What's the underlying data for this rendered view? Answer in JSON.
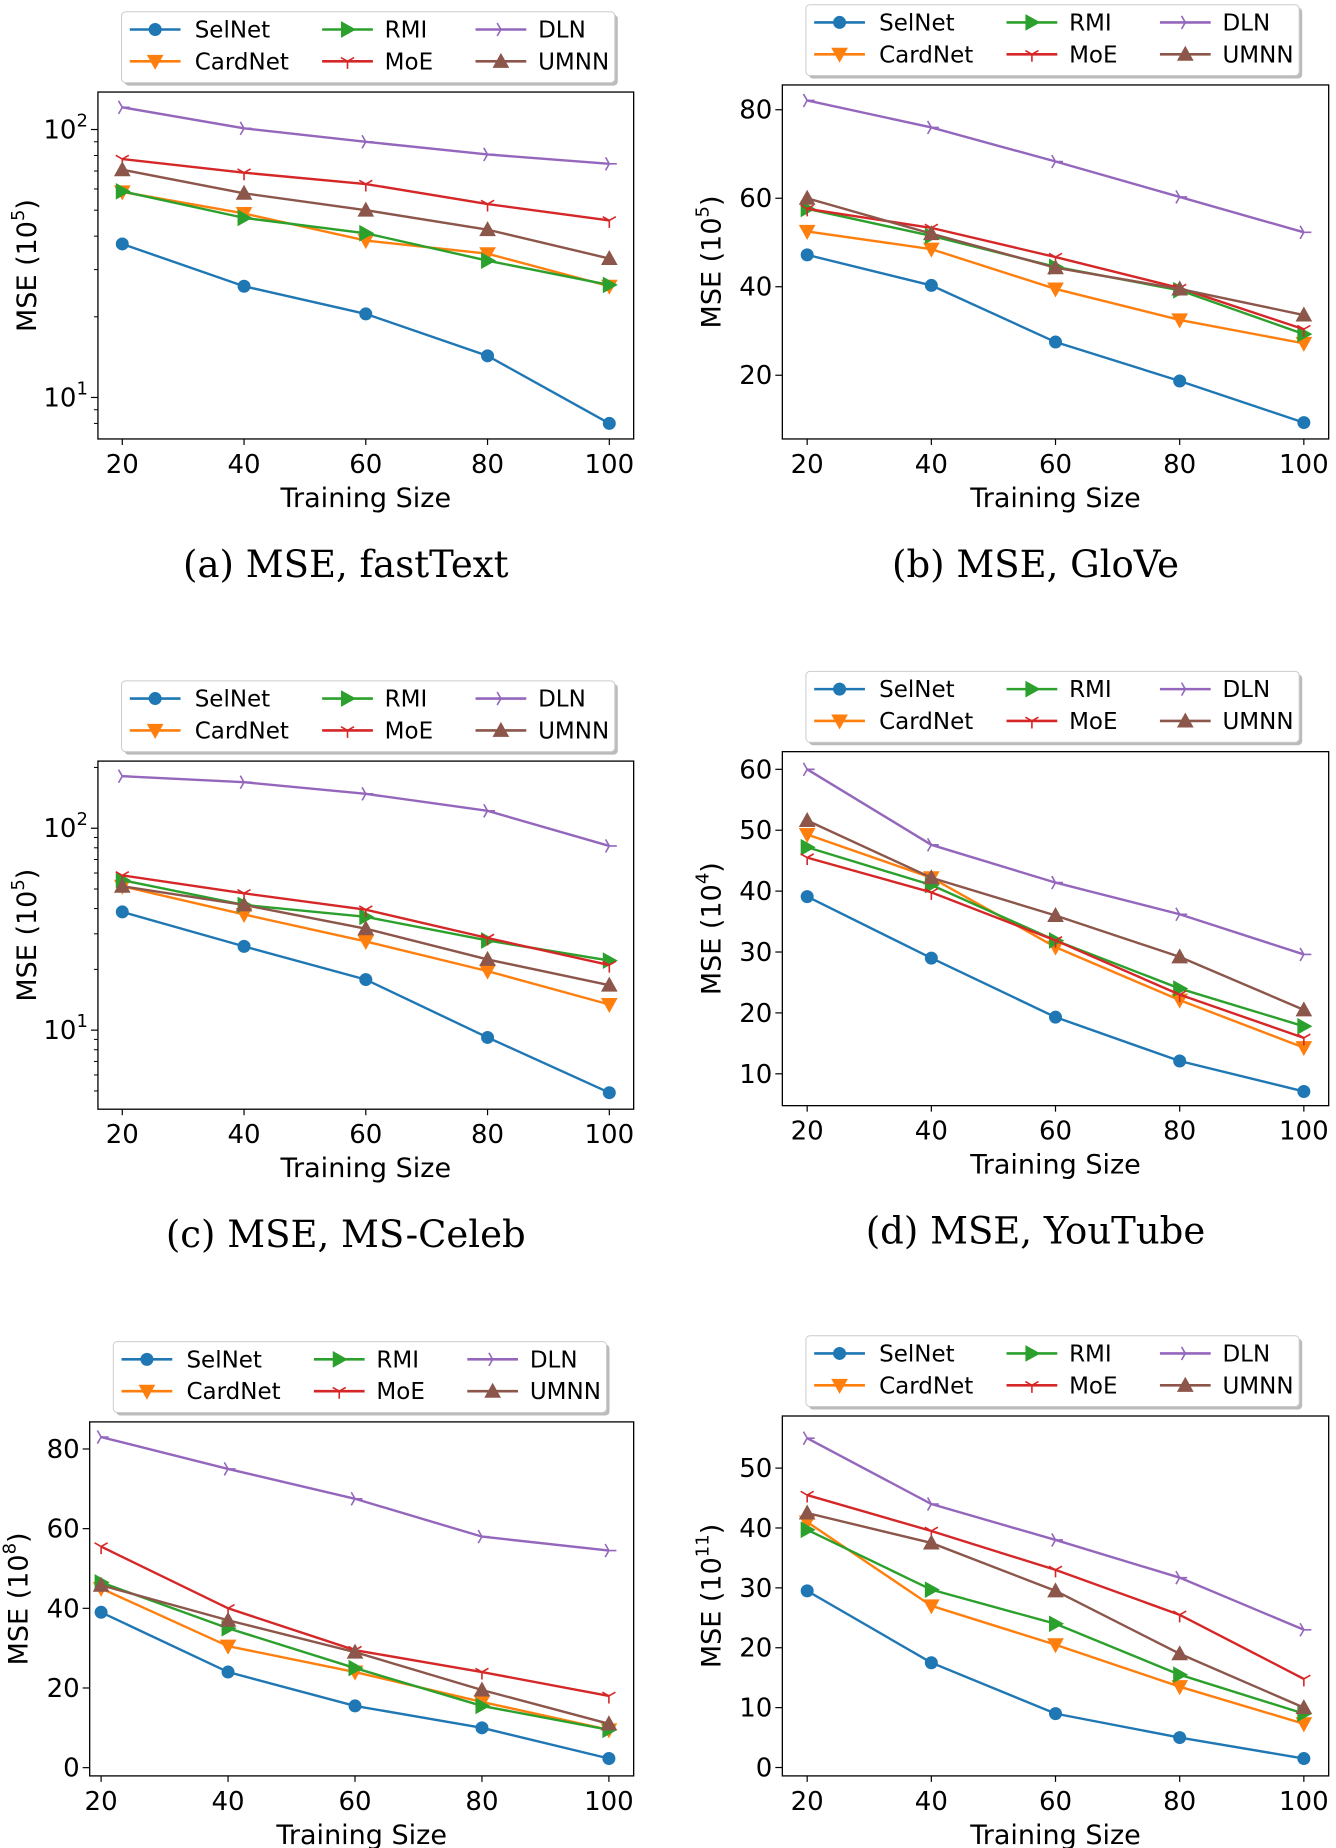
{
  "series_styles": [
    {
      "name": "SelNet",
      "color": "#1f77b4",
      "marker": "circle"
    },
    {
      "name": "CardNet",
      "color": "#ff7f0e",
      "marker": "triangle-down"
    },
    {
      "name": "RMI",
      "color": "#2ca02c",
      "marker": "triangle-right"
    },
    {
      "name": "MoE",
      "color": "#d62728",
      "marker": "tri-down"
    },
    {
      "name": "DLN",
      "color": "#9467bd",
      "marker": "tri-right"
    },
    {
      "name": "UMNN",
      "color": "#8c564b",
      "marker": "triangle-up"
    }
  ],
  "chart_data": [
    {
      "type": "line",
      "caption": "(a)  MSE, fastText",
      "xlabel": "Training Size",
      "ylabel": "MSE (10",
      "ylabel_exp": "5",
      "ylabel_close": ")",
      "yscale": "log",
      "ylim": [
        7,
        138
      ],
      "xlim": [
        16,
        104
      ],
      "x": [
        20,
        40,
        60,
        80,
        100
      ],
      "xticks": [
        "20",
        "40",
        "60",
        "80",
        "100"
      ],
      "yticks": [
        {
          "value": 10,
          "base": "10",
          "exp": "1"
        },
        {
          "value": 100,
          "base": "10",
          "exp": "2"
        }
      ],
      "legend": "top",
      "grid": false,
      "series": [
        {
          "name": "SelNet",
          "values": [
            37.4,
            26,
            20.5,
            14.3,
            8
          ]
        },
        {
          "name": "CardNet",
          "values": [
            58.5,
            48.6,
            38.5,
            34.4,
            26
          ]
        },
        {
          "name": "RMI",
          "values": [
            58.8,
            46.8,
            41,
            32.4,
            26.3
          ]
        },
        {
          "name": "MoE",
          "values": [
            77.6,
            69,
            62.6,
            52.7,
            45.8
          ]
        },
        {
          "name": "DLN",
          "values": [
            121,
            101,
            90,
            80.7,
            74.5
          ]
        },
        {
          "name": "UMNN",
          "values": [
            70.8,
            57.8,
            50,
            42.3,
            33
          ]
        }
      ]
    },
    {
      "type": "line",
      "caption": "(b)  MSE, GloVe",
      "xlabel": "Training Size",
      "ylabel": "MSE (10",
      "ylabel_exp": "5",
      "ylabel_close": ")",
      "yscale": "linear",
      "ylim": [
        5.6,
        85.6
      ],
      "xlim": [
        16,
        104
      ],
      "x": [
        20,
        40,
        60,
        80,
        100
      ],
      "xticks": [
        "20",
        "40",
        "60",
        "80",
        "100"
      ],
      "yticks": [
        {
          "value": 20,
          "base": "20"
        },
        {
          "value": 40,
          "base": "40"
        },
        {
          "value": 60,
          "base": "60"
        },
        {
          "value": 80,
          "base": "80"
        }
      ],
      "legend": "top",
      "grid": false,
      "series": [
        {
          "name": "SelNet",
          "values": [
            47.2,
            40.3,
            27.5,
            18.7,
            9.3
          ]
        },
        {
          "name": "CardNet",
          "values": [
            52.5,
            48.5,
            39.5,
            32.5,
            27.2
          ]
        },
        {
          "name": "RMI",
          "values": [
            57.6,
            51.5,
            44.5,
            39.2,
            29.3
          ]
        },
        {
          "name": "MoE",
          "values": [
            57.6,
            53.3,
            46.7,
            39.7,
            30.4
          ]
        },
        {
          "name": "DLN",
          "values": [
            82.1,
            76,
            68.3,
            60.3,
            52.3
          ]
        },
        {
          "name": "UMNN",
          "values": [
            60,
            52,
            44.3,
            39.5,
            33.6
          ]
        }
      ]
    },
    {
      "type": "line",
      "caption": "(c)  MSE, MS-Celeb",
      "xlabel": "Training Size",
      "ylabel": "MSE (10",
      "ylabel_exp": "5",
      "ylabel_close": ")",
      "yscale": "log",
      "ylim": [
        4.06,
        215
      ],
      "xlim": [
        16,
        104
      ],
      "x": [
        20,
        40,
        60,
        80,
        100
      ],
      "xticks": [
        "20",
        "40",
        "60",
        "80",
        "100"
      ],
      "yticks": [
        {
          "value": 10,
          "base": "10",
          "exp": "1"
        },
        {
          "value": 100,
          "base": "10",
          "exp": "2"
        }
      ],
      "legend": "top",
      "grid": false,
      "series": [
        {
          "name": "SelNet",
          "values": [
            38.5,
            26,
            17.8,
            9.2,
            4.9
          ]
        },
        {
          "name": "CardNet",
          "values": [
            51.6,
            37.4,
            27.5,
            19.6,
            13.4
          ]
        },
        {
          "name": "RMI",
          "values": [
            55.3,
            41.7,
            36.4,
            27.8,
            22.1
          ]
        },
        {
          "name": "MoE",
          "values": [
            58.4,
            47.6,
            39.5,
            28.6,
            21
          ]
        },
        {
          "name": "DLN",
          "values": [
            181,
            169,
            148,
            122,
            81.7
          ]
        },
        {
          "name": "UMNN",
          "values": [
            51.6,
            41.7,
            31.8,
            22.4,
            16.7
          ]
        }
      ]
    },
    {
      "type": "line",
      "caption": "(d)  MSE, YouTube",
      "xlabel": "Training Size",
      "ylabel": "MSE (10",
      "ylabel_exp": "4",
      "ylabel_close": ")",
      "yscale": "linear",
      "ylim": [
        4.77,
        62.9
      ],
      "xlim": [
        16,
        104
      ],
      "x": [
        20,
        40,
        60,
        80,
        100
      ],
      "xticks": [
        "20",
        "40",
        "60",
        "80",
        "100"
      ],
      "yticks": [
        {
          "value": 10,
          "base": "10"
        },
        {
          "value": 20,
          "base": "20"
        },
        {
          "value": 30,
          "base": "30"
        },
        {
          "value": 40,
          "base": "40"
        },
        {
          "value": 50,
          "base": "50"
        },
        {
          "value": 60,
          "base": "60"
        }
      ],
      "legend": "top",
      "grid": false,
      "series": [
        {
          "name": "SelNet",
          "values": [
            39.1,
            29,
            19.3,
            12.1,
            7.1
          ]
        },
        {
          "name": "CardNet",
          "values": [
            49.3,
            42.2,
            30.8,
            22.1,
            14.3
          ]
        },
        {
          "name": "RMI",
          "values": [
            47.2,
            41,
            31.9,
            24,
            17.8
          ]
        },
        {
          "name": "MoE",
          "values": [
            45.5,
            39.8,
            31.9,
            23,
            15.9
          ]
        },
        {
          "name": "DLN",
          "values": [
            60,
            47.6,
            41.4,
            36.2,
            29.6
          ]
        },
        {
          "name": "UMNN",
          "values": [
            51.6,
            42.2,
            36,
            29.2,
            20.5
          ]
        }
      ]
    },
    {
      "type": "line",
      "caption": "",
      "xlabel": "Training Size",
      "ylabel": "MSE (10",
      "ylabel_exp": "8",
      "ylabel_close": ")",
      "yscale": "linear",
      "ylim": [
        -2.07,
        86.8
      ],
      "xlim": [
        18.2,
        103.9
      ],
      "x": [
        20,
        40,
        60,
        80,
        100
      ],
      "xticks": [
        "20",
        "40",
        "60",
        "80",
        "100"
      ],
      "yticks": [
        {
          "value": 0,
          "base": "0"
        },
        {
          "value": 20,
          "base": "20"
        },
        {
          "value": 40,
          "base": "40"
        },
        {
          "value": 60,
          "base": "60"
        },
        {
          "value": 80,
          "base": "80"
        }
      ],
      "legend": "top",
      "grid": false,
      "series": [
        {
          "name": "SelNet",
          "values": [
            39,
            24,
            15.5,
            10,
            2.3
          ]
        },
        {
          "name": "CardNet",
          "values": [
            45,
            30.5,
            24,
            16.5,
            9.5
          ]
        },
        {
          "name": "RMI",
          "values": [
            46.5,
            35,
            25,
            15.5,
            9.5
          ]
        },
        {
          "name": "MoE",
          "values": [
            55.5,
            40,
            29.5,
            24,
            18
          ]
        },
        {
          "name": "DLN",
          "values": [
            83,
            75,
            67.5,
            58,
            54.5
          ]
        },
        {
          "name": "UMNN",
          "values": [
            45.8,
            37,
            29,
            19.5,
            11
          ]
        }
      ]
    },
    {
      "type": "line",
      "caption": "",
      "xlabel": "Training Size",
      "ylabel": "MSE (10",
      "ylabel_exp": "11",
      "ylabel_close": ")",
      "yscale": "linear",
      "ylim": [
        -1.4,
        58.7
      ],
      "xlim": [
        16,
        104
      ],
      "x": [
        20,
        40,
        60,
        80,
        100
      ],
      "xticks": [
        "20",
        "40",
        "60",
        "80",
        "100"
      ],
      "yticks": [
        {
          "value": 0,
          "base": "0"
        },
        {
          "value": 10,
          "base": "10"
        },
        {
          "value": 20,
          "base": "20"
        },
        {
          "value": 30,
          "base": "30"
        },
        {
          "value": 40,
          "base": "40"
        },
        {
          "value": 50,
          "base": "50"
        }
      ],
      "legend": "top",
      "grid": false,
      "series": [
        {
          "name": "SelNet",
          "values": [
            29.5,
            17.5,
            9,
            5,
            1.5
          ]
        },
        {
          "name": "CardNet",
          "values": [
            41,
            27,
            20.5,
            13.5,
            7.3
          ]
        },
        {
          "name": "RMI",
          "values": [
            39.7,
            29.7,
            24,
            15.5,
            9
          ]
        },
        {
          "name": "MoE",
          "values": [
            45.5,
            39.5,
            33,
            25.5,
            14.8
          ]
        },
        {
          "name": "DLN",
          "values": [
            55,
            44,
            38,
            31.7,
            23
          ]
        },
        {
          "name": "UMNN",
          "values": [
            42.5,
            37.5,
            29.5,
            19,
            10
          ]
        }
      ]
    }
  ]
}
